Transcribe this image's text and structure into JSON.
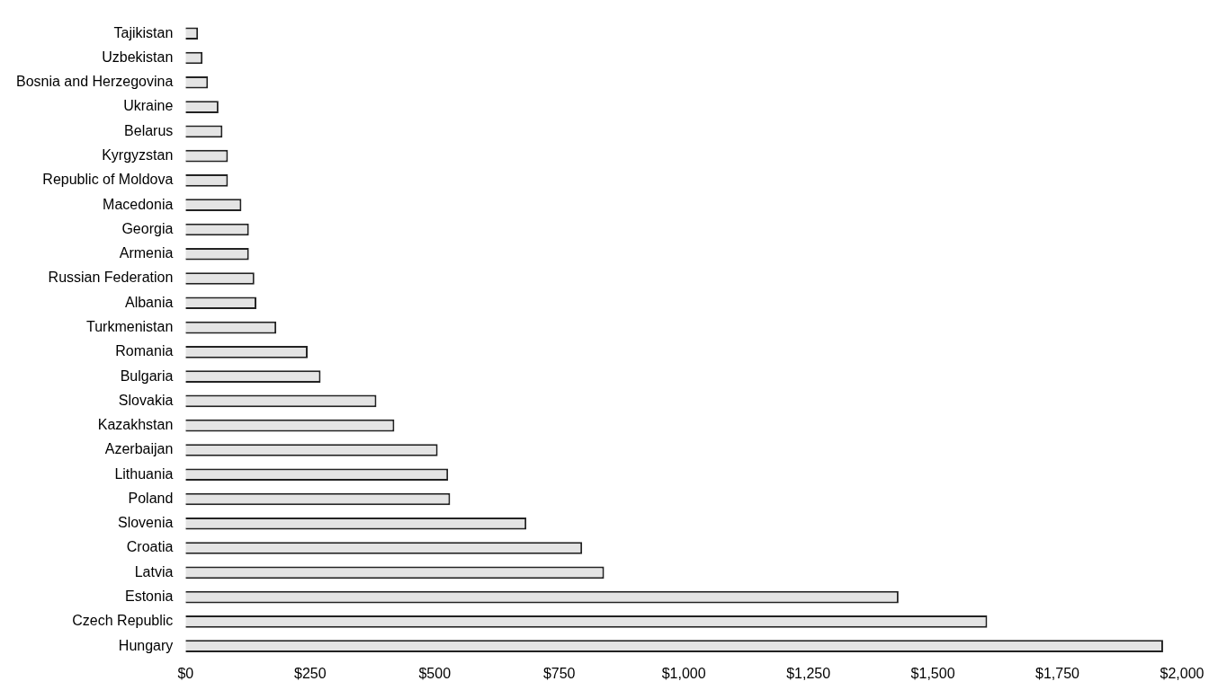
{
  "chart_data": {
    "type": "bar",
    "orientation": "horizontal",
    "categories": [
      "Tajikistan",
      "Uzbekistan",
      "Bosnia and Herzegovina",
      "Ukraine",
      "Belarus",
      "Kyrgyzstan",
      "Republic of Moldova",
      "Macedonia",
      "Georgia",
      "Armenia",
      "Russian Federation",
      "Albania",
      "Turkmenistan",
      "Romania",
      "Bulgaria",
      "Slovakia",
      "Kazakhstan",
      "Azerbaijan",
      "Lithuania",
      "Poland",
      "Slovenia",
      "Croatia",
      "Latvia",
      "Estonia",
      "Czech Republic",
      "Hungary"
    ],
    "values": [
      25,
      34,
      45,
      66,
      74,
      85,
      85,
      112,
      127,
      127,
      138,
      142,
      182,
      245,
      271,
      383,
      419,
      506,
      527,
      531,
      684,
      796,
      840,
      1431,
      1609,
      1962
    ],
    "color": "#e4e4e4",
    "xlim": [
      0,
      2000
    ],
    "xticks": [
      {
        "value": 0,
        "label": "$0"
      },
      {
        "value": 250,
        "label": "$250"
      },
      {
        "value": 500,
        "label": "$500"
      },
      {
        "value": 750,
        "label": "$750"
      },
      {
        "value": 1000,
        "label": "$1,000"
      },
      {
        "value": 1250,
        "label": "$1,250"
      },
      {
        "value": 1500,
        "label": "$1,500"
      },
      {
        "value": 1750,
        "label": "$1,750"
      },
      {
        "value": 2000,
        "label": "$2,000"
      }
    ],
    "grid": false,
    "legend": false
  }
}
